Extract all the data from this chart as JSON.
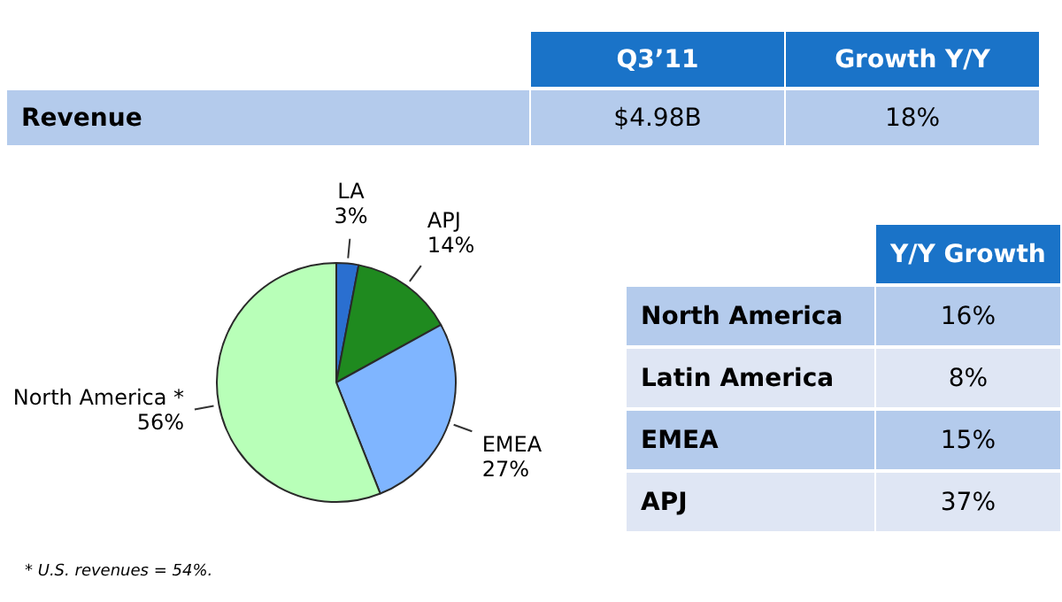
{
  "chart_data": [
    {
      "type": "other",
      "categories": [
        "Q3’11",
        "Growth Y/Y"
      ],
      "y_categories": [
        "Revenue"
      ],
      "cell_labels": [
        [
          "$4.98B",
          "18%"
        ]
      ]
    },
    {
      "type": "pie",
      "categories": [
        "LA",
        "APJ",
        "EMEA",
        "North America *"
      ],
      "values": [
        3,
        14,
        27,
        56
      ],
      "colors": [
        "#2a6fd0",
        "#1f8a1f",
        "#7fb5ff",
        "#b8ffb8"
      ],
      "value_labels": [
        "3%",
        "14%",
        "27%",
        "56%"
      ],
      "legend": false,
      "annotations": [
        "* U.S. revenues = 54%."
      ]
    },
    {
      "type": "other",
      "categories": [
        "Y/Y Growth"
      ],
      "y_categories": [
        "North America",
        "Latin America",
        "EMEA",
        "APJ"
      ],
      "cell_labels": [
        [
          "16%"
        ],
        [
          "8%"
        ],
        [
          "15%"
        ],
        [
          "37%"
        ]
      ]
    }
  ]
}
